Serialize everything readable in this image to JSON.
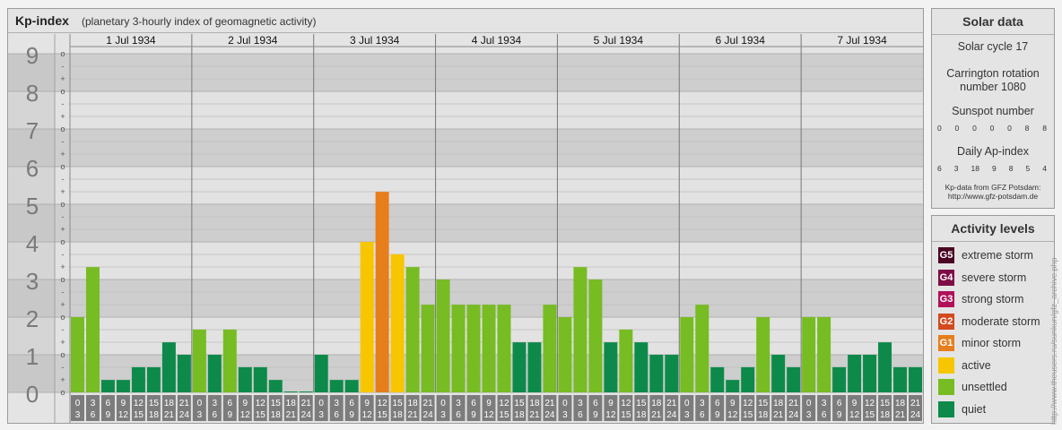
{
  "header": {
    "title": "Kp-index",
    "subtitle": "(planetary 3-hourly index of geomagnetic activity)"
  },
  "chart_data": {
    "type": "bar",
    "ylim": [
      0,
      9
    ],
    "y_tick_labels": [
      "0",
      "1",
      "2",
      "3",
      "4",
      "5",
      "6",
      "7",
      "8",
      "9"
    ],
    "minor_tick_labels": [
      "o",
      "+",
      "-"
    ],
    "days": [
      "1 Jul 1934",
      "2 Jul 1934",
      "3 Jul 1934",
      "4 Jul 1934",
      "5 Jul 1934",
      "6 Jul 1934",
      "7 Jul 1934"
    ],
    "interval_labels": [
      [
        "0",
        "3"
      ],
      [
        "3",
        "6"
      ],
      [
        "6",
        "9"
      ],
      [
        "9",
        "12"
      ],
      [
        "12",
        "15"
      ],
      [
        "15",
        "18"
      ],
      [
        "18",
        "21"
      ],
      [
        "21",
        "24"
      ]
    ],
    "values": [
      [
        2.0,
        3.33,
        0.33,
        0.33,
        0.67,
        0.67,
        1.33,
        1.0
      ],
      [
        1.67,
        1.0,
        1.67,
        0.67,
        0.67,
        0.33,
        0.0,
        0.0
      ],
      [
        1.0,
        0.33,
        0.33,
        4.0,
        5.33,
        3.67,
        3.33,
        2.33
      ],
      [
        3.0,
        2.33,
        2.33,
        2.33,
        2.33,
        1.33,
        1.33,
        2.33
      ],
      [
        2.0,
        3.33,
        3.0,
        1.33,
        1.67,
        1.33,
        1.0,
        1.0
      ],
      [
        2.0,
        2.33,
        0.67,
        0.33,
        0.67,
        2.0,
        1.0,
        0.67
      ],
      [
        2.0,
        2.0,
        0.67,
        1.0,
        1.0,
        1.33,
        0.67,
        0.67
      ]
    ],
    "level_colors": {
      "quiet": "#0d8a4a",
      "unsettled": "#77bc22",
      "active": "#f7c600",
      "G1": "#e67e1c",
      "G2": "#d24a1e",
      "G3": "#b1105a",
      "G4": "#7e0d45",
      "G5": "#4a0323"
    }
  },
  "solar": {
    "title": "Solar data",
    "cycle": "Solar cycle 17",
    "carrington_line1": "Carrington rotation",
    "carrington_line2": "number 1080",
    "sunspot_title": "Sunspot number",
    "sunspot_values": [
      "0",
      "0",
      "0",
      "0",
      "0",
      "8",
      "8"
    ],
    "ap_title": "Daily Ap-index",
    "ap_values": [
      "6",
      "3",
      "18",
      "9",
      "8",
      "5",
      "4"
    ],
    "source_line1": "Kp-data from GFZ Potsdam:",
    "source_line2": "http://www.gfz-potsdam.de"
  },
  "activity": {
    "title": "Activity levels",
    "items": [
      {
        "code": "G5",
        "label": "extreme storm",
        "color": "#4a0323"
      },
      {
        "code": "G4",
        "label": "severe storm",
        "color": "#7e0d45"
      },
      {
        "code": "G3",
        "label": "strong storm",
        "color": "#b1105a"
      },
      {
        "code": "G2",
        "label": "moderate storm",
        "color": "#d24a1e"
      },
      {
        "code": "G1",
        "label": "minor storm",
        "color": "#e67e1c"
      },
      {
        "code": "",
        "label": "active",
        "color": "#f7c600"
      },
      {
        "code": "",
        "label": "unsettled",
        "color": "#77bc22"
      },
      {
        "code": "",
        "label": "quiet",
        "color": "#0d8a4a"
      }
    ]
  },
  "watermark": "http://www.theusers.ru/sunkun/gfz_archive.php"
}
